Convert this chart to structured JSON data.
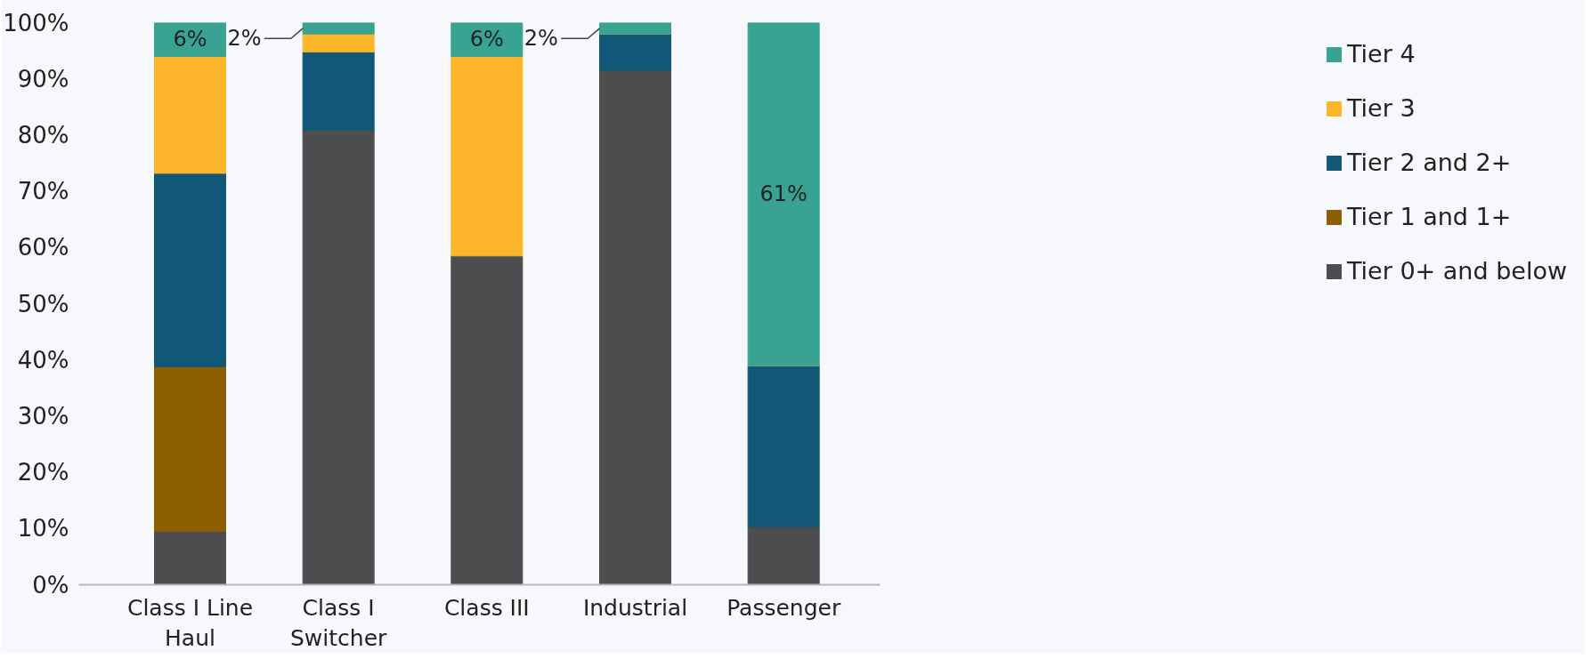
{
  "chart_data": {
    "type": "bar",
    "stacked": true,
    "categories": [
      "Class I Line Haul",
      "Class I Switcher",
      "Class III",
      "Industrial",
      "Passenger"
    ],
    "series": [
      {
        "name": "Tier 0+ and below",
        "color": "#4d4d4f",
        "values": [
          9.5,
          80.8,
          58.5,
          91.5,
          10.3
        ]
      },
      {
        "name": "Tier 1 and 1+",
        "color": "#8c5e00",
        "values": [
          29.3,
          0,
          0,
          0,
          0
        ]
      },
      {
        "name": "Tier 2 and 2+",
        "color": "#115878",
        "values": [
          34.4,
          14,
          0,
          6.5,
          28.7
        ]
      },
      {
        "name": "Tier 3",
        "color": "#fdb62b",
        "values": [
          20.8,
          3.2,
          35.5,
          0,
          0
        ]
      },
      {
        "name": "Tier 4",
        "color": "#38a392",
        "values": [
          6,
          2,
          6,
          2,
          61
        ],
        "value_labels": [
          "6%",
          "2%",
          "6%",
          "2%",
          "61%"
        ]
      }
    ],
    "ylim": [
      0,
      100
    ],
    "yticks": [
      {
        "value": 0,
        "label": "0%"
      },
      {
        "value": 10,
        "label": "10%"
      },
      {
        "value": 20,
        "label": "20%"
      },
      {
        "value": 30,
        "label": "30%"
      },
      {
        "value": 40,
        "label": "40%"
      },
      {
        "value": 50,
        "label": "50%"
      },
      {
        "value": 60,
        "label": "60%"
      },
      {
        "value": 70,
        "label": "70%"
      },
      {
        "value": 80,
        "label": "80%"
      },
      {
        "value": 90,
        "label": "90%"
      },
      {
        "value": 100,
        "label": "100%"
      }
    ],
    "grid": false,
    "legend": "right"
  }
}
